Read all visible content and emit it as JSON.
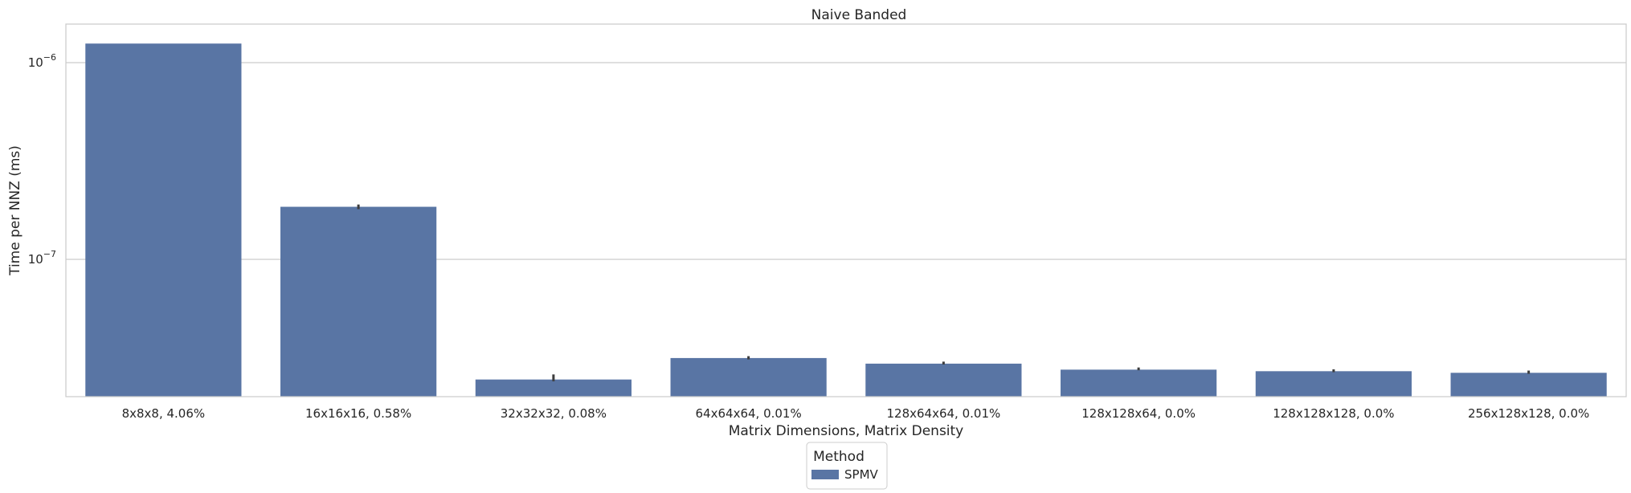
{
  "chart_data": {
    "type": "bar",
    "title": "Naive Banded",
    "xlabel": "Matrix Dimensions, Matrix Density",
    "ylabel": "Time per NNZ (ms)",
    "yscale": "log",
    "ylim": [
      2e-08,
      1.5e-06
    ],
    "yticks": [
      {
        "value": 1e-07,
        "base": "10",
        "exp": "−7"
      },
      {
        "value": 1e-06,
        "base": "10",
        "exp": "−6"
      }
    ],
    "grid": true,
    "categories": [
      "8x8x8, 4.06%",
      "16x16x16, 0.58%",
      "32x32x32, 0.08%",
      "64x64x64, 0.01%",
      "128x64x64, 0.01%",
      "128x128x64, 0.0%",
      "128x128x128, 0.0%",
      "256x128x128, 0.0%"
    ],
    "series": [
      {
        "name": "SPMV",
        "color": "#5975a4",
        "values": [
          1.25e-06,
          1.85e-07,
          2.45e-08,
          3.15e-08,
          2.95e-08,
          2.75e-08,
          2.7e-08,
          2.65e-08
        ],
        "errors": [
          [
            1.25e-06,
            1.25e-06
          ],
          [
            1.8e-07,
            1.9e-07
          ],
          [
            2.4e-08,
            2.6e-08
          ],
          [
            3.1e-08,
            3.22e-08
          ],
          [
            2.92e-08,
            3.02e-08
          ],
          [
            2.73e-08,
            2.82e-08
          ],
          [
            2.67e-08,
            2.76e-08
          ],
          [
            2.62e-08,
            2.72e-08
          ]
        ]
      }
    ],
    "legend": {
      "title": "Method",
      "placement": "bottom-center"
    }
  }
}
